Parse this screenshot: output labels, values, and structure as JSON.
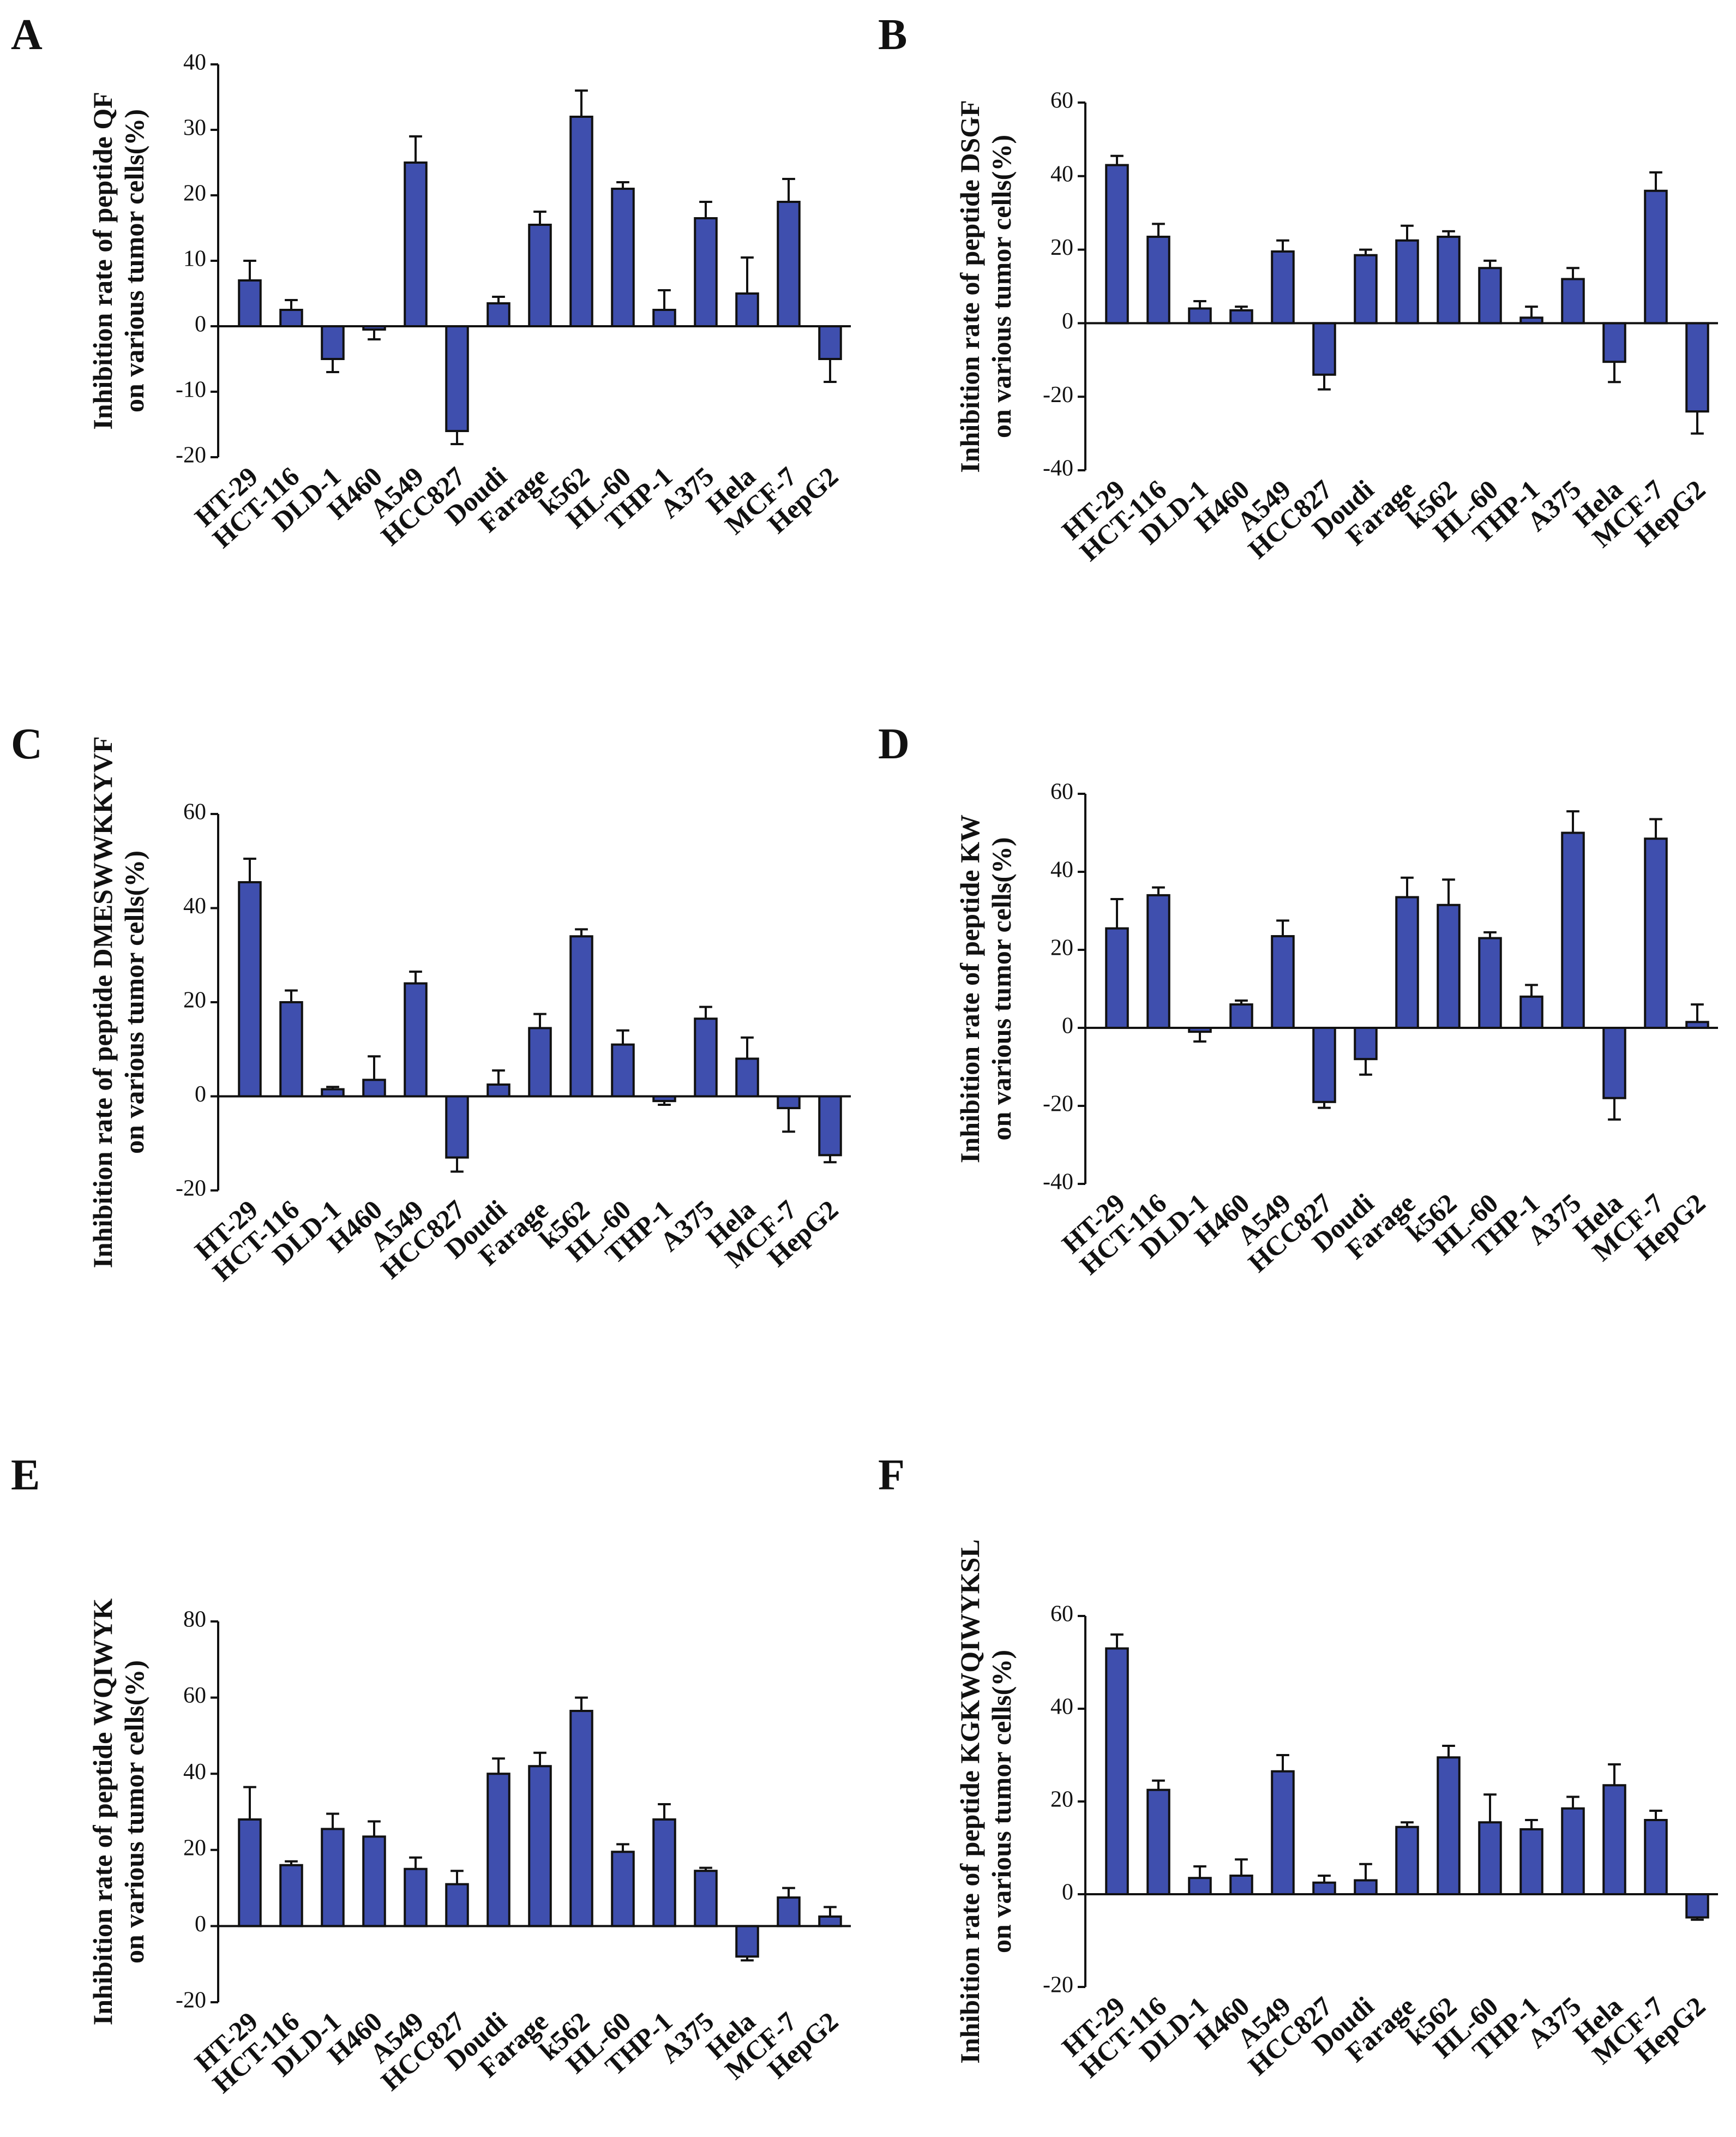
{
  "chart_data": [
    {
      "type": "bar",
      "panel": "A",
      "ylabel": [
        "Inhibition rate of peptide QF",
        "on various tumor cells(%)"
      ],
      "color": "#3f4fae",
      "categories": [
        "HT-29",
        "HCT-116",
        "DLD-1",
        "H460",
        "A549",
        "HCC827",
        "Doudi",
        "Farage",
        "k562",
        "HL-60",
        "THP-1",
        "A375",
        "Hela",
        "MCF-7",
        "HepG2"
      ],
      "values": [
        7,
        2.5,
        -5,
        -0.5,
        25,
        -16,
        3.5,
        15.5,
        32,
        21,
        2.5,
        16.5,
        5,
        19,
        -5
      ],
      "errors": [
        3,
        1.5,
        2,
        1.5,
        4,
        2,
        1,
        2,
        4,
        1,
        3,
        2.5,
        5.5,
        3.5,
        3.5
      ],
      "ylim": [
        -20,
        40
      ],
      "yticks": [
        -20,
        -10,
        0,
        10,
        20,
        30,
        40
      ]
    },
    {
      "type": "bar",
      "panel": "B",
      "ylabel": [
        "Inhibition rate of peptide DSGF",
        "on various tumor cells(%)"
      ],
      "color": "#3f4fae",
      "categories": [
        "HT-29",
        "HCT-116",
        "DLD-1",
        "H460",
        "A549",
        "HCC827",
        "Doudi",
        "Farage",
        "k562",
        "HL-60",
        "THP-1",
        "A375",
        "Hela",
        "MCF-7",
        "HepG2"
      ],
      "values": [
        43,
        23.5,
        4,
        3.5,
        19.5,
        -14,
        18.5,
        22.5,
        23.5,
        15,
        1.5,
        12,
        -10.5,
        36,
        -24
      ],
      "errors": [
        2.5,
        3.5,
        2,
        1,
        3,
        4,
        1.5,
        4,
        1.5,
        2,
        3,
        3,
        5.5,
        5,
        6
      ],
      "ylim": [
        -40,
        60
      ],
      "yticks": [
        -40,
        -20,
        0,
        20,
        40,
        60
      ]
    },
    {
      "type": "bar",
      "panel": "C",
      "ylabel": [
        "Inhibition rate of peptide DMESWWKKYVF",
        "on various tumor cells(%)"
      ],
      "color": "#3f4fae",
      "categories": [
        "HT-29",
        "HCT-116",
        "DLD-1",
        "H460",
        "A549",
        "HCC827",
        "Doudi",
        "Farage",
        "k562",
        "HL-60",
        "THP-1",
        "A375",
        "Hela",
        "MCF-7",
        "HepG2"
      ],
      "values": [
        45.5,
        20,
        1.5,
        3.5,
        24,
        -13,
        2.5,
        14.5,
        34,
        11,
        -1,
        16.5,
        8,
        -2.5,
        -12.5
      ],
      "errors": [
        5,
        2.5,
        0.5,
        5,
        2.5,
        3,
        3,
        3,
        1.5,
        3,
        0.8,
        2.5,
        4.5,
        5,
        1.5
      ],
      "ylim": [
        -20,
        60
      ],
      "yticks": [
        -20,
        0,
        20,
        40,
        60
      ]
    },
    {
      "type": "bar",
      "panel": "D",
      "ylabel": [
        "Inhibition rate of peptide KW",
        "on various tumor cells(%)"
      ],
      "color": "#3f4fae",
      "categories": [
        "HT-29",
        "HCT-116",
        "DLD-1",
        "H460",
        "A549",
        "HCC827",
        "Doudi",
        "Farage",
        "k562",
        "HL-60",
        "THP-1",
        "A375",
        "Hela",
        "MCF-7",
        "HepG2"
      ],
      "values": [
        25.5,
        34,
        -1,
        6,
        23.5,
        -19,
        -8,
        33.5,
        31.5,
        23,
        8,
        50,
        -18,
        48.5,
        1.5
      ],
      "errors": [
        7.5,
        2,
        2.5,
        1,
        4,
        1.5,
        4,
        5,
        6.5,
        1.5,
        3,
        5.5,
        5.5,
        5,
        4.5
      ],
      "ylim": [
        -40,
        60
      ],
      "yticks": [
        -40,
        -20,
        0,
        20,
        40,
        60
      ]
    },
    {
      "type": "bar",
      "panel": "E",
      "ylabel": [
        "Inhibition rate of peptide WQIWYK",
        "on various tumor cells(%)"
      ],
      "color": "#3f4fae",
      "categories": [
        "HT-29",
        "HCT-116",
        "DLD-1",
        "H460",
        "A549",
        "HCC827",
        "Doudi",
        "Farage",
        "k562",
        "HL-60",
        "THP-1",
        "A375",
        "Hela",
        "MCF-7",
        "HepG2"
      ],
      "values": [
        28,
        16,
        25.5,
        23.5,
        15,
        11,
        40,
        42,
        56.5,
        19.5,
        28,
        14.5,
        -8,
        7.5,
        2.5
      ],
      "errors": [
        8.5,
        1,
        4,
        4,
        3,
        3.5,
        4,
        3.5,
        3.5,
        2,
        4,
        0.8,
        1,
        2.5,
        2.5
      ],
      "ylim": [
        -20,
        80
      ],
      "yticks": [
        -20,
        0,
        20,
        40,
        60,
        80
      ]
    },
    {
      "type": "bar",
      "panel": "F",
      "ylabel": [
        "Inhibition rate of peptide KGKWQIWYKSL",
        "on various tumor cells(%)"
      ],
      "color": "#3f4fae",
      "categories": [
        "HT-29",
        "HCT-116",
        "DLD-1",
        "H460",
        "A549",
        "HCC827",
        "Doudi",
        "Farage",
        "k562",
        "HL-60",
        "THP-1",
        "A375",
        "Hela",
        "MCF-7",
        "HepG2"
      ],
      "values": [
        53,
        22.5,
        3.5,
        4,
        26.5,
        2.5,
        3,
        14.5,
        29.5,
        15.5,
        14,
        18.5,
        23.5,
        16,
        -5
      ],
      "errors": [
        3,
        2,
        2.5,
        3.5,
        3.5,
        1.5,
        3.5,
        1,
        2.5,
        6,
        2,
        2.5,
        4.5,
        2,
        0.5
      ],
      "ylim": [
        -20,
        60
      ],
      "yticks": [
        -20,
        0,
        20,
        40,
        60
      ]
    }
  ]
}
